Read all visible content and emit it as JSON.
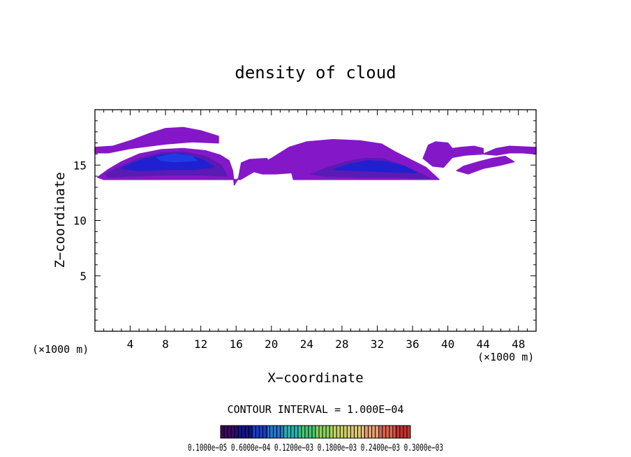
{
  "chart_data": {
    "type": "heatmap",
    "title": "density of cloud",
    "xlabel": "X−coordinate",
    "ylabel": "Z−coordinate",
    "xlim": [
      0,
      50
    ],
    "ylim": [
      0,
      20
    ],
    "x_ticks": [
      4,
      8,
      12,
      16,
      20,
      24,
      28,
      32,
      36,
      40,
      44,
      48
    ],
    "x_tick_labels": [
      "4",
      "8",
      "12",
      "16",
      "20",
      "24",
      "28",
      "32",
      "36",
      "40",
      "44",
      "48"
    ],
    "y_ticks": [
      5,
      10,
      15
    ],
    "y_tick_labels": [
      "5",
      "10",
      "15"
    ],
    "x_unit_left": "(×1000 m)",
    "x_unit_right": "(×1000 m)",
    "contour_interval_text": "CONTOUR INTERVAL = 1.000E−04",
    "colorbar_labels_text": "0.1000e−05 0.6000e−04 0.1200e−03 0.1800e−03 0.2400e−03 0.3000e−03",
    "colorbar_colors": [
      "#3a0a5e",
      "#14148c",
      "#1a3cc8",
      "#1e78d2",
      "#28b4b4",
      "#46c878",
      "#8cd25a",
      "#c8d264",
      "#dcc878",
      "#e6a078",
      "#dc6450",
      "#c83232"
    ],
    "cloud_colors": {
      "low": "#8418c8",
      "mid": "#5a1ab4",
      "high": "#2020d0",
      "peak": "#1e3ce6"
    },
    "regions": [
      {
        "name": "upper-thin-layer-left",
        "level": "low",
        "outline": [
          [
            0,
            16.6
          ],
          [
            2,
            16.7
          ],
          [
            4,
            17.2
          ],
          [
            6,
            17.8
          ],
          [
            8,
            18.3
          ],
          [
            10,
            18.4
          ],
          [
            12,
            18.1
          ],
          [
            14,
            17.6
          ],
          [
            14,
            17.0
          ],
          [
            11,
            17.1
          ],
          [
            8,
            16.9
          ],
          [
            4,
            16.5
          ],
          [
            1.5,
            16.1
          ],
          [
            0,
            16.1
          ]
        ]
      },
      {
        "name": "cloud-left-outer",
        "level": "low",
        "outline": [
          [
            0.3,
            13.9
          ],
          [
            1.5,
            14.6
          ],
          [
            3,
            15.3
          ],
          [
            5,
            16.0
          ],
          [
            7.5,
            16.4
          ],
          [
            10,
            16.5
          ],
          [
            12.5,
            16.3
          ],
          [
            14.2,
            15.9
          ],
          [
            15.2,
            15.4
          ],
          [
            15.6,
            14.5
          ],
          [
            15.8,
            13.2
          ],
          [
            16.3,
            13.9
          ],
          [
            16.6,
            15.2
          ],
          [
            17.5,
            15.5
          ],
          [
            19.5,
            15.6
          ],
          [
            19.8,
            15.0
          ],
          [
            18,
            14.4
          ],
          [
            16.5,
            13.7
          ],
          [
            14.5,
            13.7
          ],
          [
            10,
            13.7
          ],
          [
            5,
            13.7
          ],
          [
            1,
            13.7
          ]
        ]
      },
      {
        "name": "cloud-left-middle",
        "level": "mid",
        "outline": [
          [
            1.2,
            14.2
          ],
          [
            3,
            14.9
          ],
          [
            5,
            15.6
          ],
          [
            7.5,
            16.1
          ],
          [
            10,
            16.2
          ],
          [
            12.5,
            15.8
          ],
          [
            14.3,
            15.0
          ],
          [
            15,
            14.0
          ],
          [
            12,
            14.1
          ],
          [
            8,
            14.1
          ],
          [
            4,
            14.0
          ],
          [
            1.5,
            13.9
          ]
        ]
      },
      {
        "name": "cloud-left-core",
        "level": "high",
        "outline": [
          [
            3,
            14.7
          ],
          [
            5,
            15.4
          ],
          [
            7.5,
            15.9
          ],
          [
            10,
            16.0
          ],
          [
            12.2,
            15.5
          ],
          [
            13.5,
            14.8
          ],
          [
            11,
            14.6
          ],
          [
            8,
            14.6
          ],
          [
            5,
            14.5
          ]
        ]
      },
      {
        "name": "cloud-left-peak",
        "level": "peak",
        "outline": [
          [
            7,
            15.7
          ],
          [
            9,
            16.0
          ],
          [
            11,
            15.8
          ],
          [
            11.5,
            15.4
          ],
          [
            9,
            15.3
          ],
          [
            7.5,
            15.4
          ]
        ]
      },
      {
        "name": "cloud-right-outer",
        "level": "low",
        "outline": [
          [
            17.5,
            14.5
          ],
          [
            20,
            15.6
          ],
          [
            22,
            16.6
          ],
          [
            24,
            17.1
          ],
          [
            27,
            17.3
          ],
          [
            30,
            17.2
          ],
          [
            32.5,
            16.9
          ],
          [
            34,
            16.2
          ],
          [
            35.5,
            15.6
          ],
          [
            37.5,
            14.8
          ],
          [
            39,
            13.7
          ],
          [
            35,
            13.7
          ],
          [
            30,
            13.7
          ],
          [
            25,
            13.7
          ],
          [
            22.5,
            13.7
          ],
          [
            22.3,
            14.3
          ],
          [
            20.5,
            14.2
          ],
          [
            19,
            14.2
          ]
        ]
      },
      {
        "name": "cloud-right-middle",
        "level": "mid",
        "outline": [
          [
            24.5,
            14.2
          ],
          [
            26.5,
            14.8
          ],
          [
            28.5,
            15.3
          ],
          [
            30.5,
            15.6
          ],
          [
            32.5,
            15.6
          ],
          [
            34.5,
            15.1
          ],
          [
            36.5,
            14.4
          ],
          [
            38,
            13.8
          ],
          [
            34,
            13.9
          ],
          [
            30,
            13.9
          ],
          [
            26,
            14.0
          ]
        ]
      },
      {
        "name": "cloud-right-core",
        "level": "high",
        "outline": [
          [
            27,
            14.6
          ],
          [
            29,
            15.1
          ],
          [
            31,
            15.4
          ],
          [
            33,
            15.3
          ],
          [
            35,
            14.9
          ],
          [
            36.5,
            14.3
          ],
          [
            33,
            14.4
          ],
          [
            30,
            14.5
          ]
        ]
      },
      {
        "name": "right-patch-mid",
        "level": "low",
        "outline": [
          [
            37.2,
            15.6
          ],
          [
            37.8,
            16.8
          ],
          [
            38.6,
            17.1
          ],
          [
            40,
            17.0
          ],
          [
            40.5,
            16.5
          ],
          [
            41.5,
            16.6
          ],
          [
            43,
            16.7
          ],
          [
            44,
            16.5
          ],
          [
            44,
            16.0
          ],
          [
            42,
            15.9
          ],
          [
            40.5,
            15.7
          ],
          [
            39.5,
            14.8
          ],
          [
            38.3,
            14.9
          ]
        ]
      },
      {
        "name": "right-patch-upper",
        "level": "low",
        "outline": [
          [
            44,
            16.0
          ],
          [
            45.5,
            16.5
          ],
          [
            47,
            16.7
          ],
          [
            50,
            16.6
          ],
          [
            50,
            16.0
          ],
          [
            48.5,
            16.1
          ],
          [
            47,
            16.1
          ],
          [
            45.5,
            15.9
          ]
        ]
      },
      {
        "name": "right-patch-lower",
        "level": "low",
        "outline": [
          [
            41,
            14.5
          ],
          [
            41.8,
            14.9
          ],
          [
            43.5,
            15.3
          ],
          [
            45,
            15.6
          ],
          [
            46.5,
            15.8
          ],
          [
            47.5,
            15.3
          ],
          [
            46,
            15.0
          ],
          [
            44,
            14.7
          ],
          [
            42.3,
            14.2
          ]
        ]
      }
    ]
  }
}
